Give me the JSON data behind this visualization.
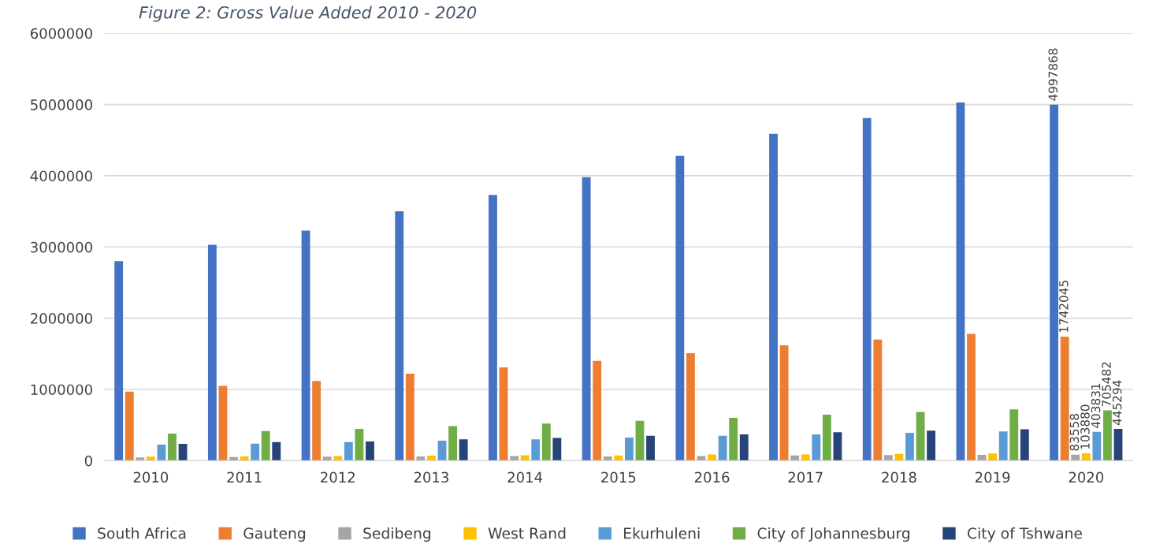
{
  "chart_data": {
    "type": "bar",
    "title": "Figure 2: Gross Value Added 2010 - 2020",
    "categories": [
      "2010",
      "2011",
      "2012",
      "2013",
      "2014",
      "2015",
      "2016",
      "2017",
      "2018",
      "2019",
      "2020"
    ],
    "series": [
      {
        "name": "South Africa",
        "color": "#4472c4",
        "values": [
          2800000,
          3030000,
          3230000,
          3500000,
          3730000,
          3980000,
          4280000,
          4590000,
          4810000,
          5030000,
          4997868
        ],
        "value_labels": [
          null,
          null,
          null,
          null,
          null,
          null,
          null,
          null,
          null,
          null,
          "4997868"
        ]
      },
      {
        "name": "Gauteng",
        "color": "#ed7d31",
        "values": [
          970000,
          1050000,
          1120000,
          1220000,
          1310000,
          1400000,
          1510000,
          1620000,
          1700000,
          1780000,
          1742045
        ],
        "value_labels": [
          null,
          null,
          null,
          null,
          null,
          null,
          null,
          null,
          null,
          null,
          "1742045"
        ]
      },
      {
        "name": "Sedibeng",
        "color": "#a5a5a5",
        "values": [
          45000,
          50000,
          55000,
          60000,
          64000,
          60000,
          65000,
          74000,
          78000,
          82000,
          83558
        ],
        "value_labels": [
          null,
          null,
          null,
          null,
          null,
          null,
          null,
          null,
          null,
          null,
          "83558"
        ]
      },
      {
        "name": "West Rand",
        "color": "#ffc000",
        "values": [
          55000,
          60000,
          65000,
          70000,
          75000,
          74000,
          87000,
          87000,
          95000,
          100000,
          103880
        ],
        "value_labels": [
          null,
          null,
          null,
          null,
          null,
          null,
          null,
          null,
          null,
          null,
          "103880"
        ]
      },
      {
        "name": "Ekurhuleni",
        "color": "#5b9bd5",
        "values": [
          225000,
          240000,
          260000,
          280000,
          300000,
          325000,
          350000,
          370000,
          390000,
          410000,
          403831
        ],
        "value_labels": [
          null,
          null,
          null,
          null,
          null,
          null,
          null,
          null,
          null,
          null,
          "403831"
        ]
      },
      {
        "name": "City of Johannesburg",
        "color": "#70ad47",
        "values": [
          380000,
          415000,
          445000,
          484000,
          520000,
          560000,
          600000,
          645000,
          684000,
          720000,
          705482
        ],
        "value_labels": [
          null,
          null,
          null,
          null,
          null,
          null,
          null,
          null,
          null,
          null,
          "705482"
        ]
      },
      {
        "name": "City of Tshwane",
        "color": "#264478",
        "values": [
          235000,
          260000,
          270000,
          300000,
          320000,
          350000,
          370000,
          400000,
          420000,
          440000,
          445294
        ],
        "value_labels": [
          null,
          null,
          null,
          null,
          null,
          null,
          null,
          null,
          null,
          null,
          "445294"
        ]
      }
    ],
    "ylim": [
      0,
      6000000
    ],
    "yticks": [
      0,
      1000000,
      2000000,
      3000000,
      4000000,
      5000000,
      6000000
    ],
    "grid": "y",
    "legend": "bottom"
  }
}
